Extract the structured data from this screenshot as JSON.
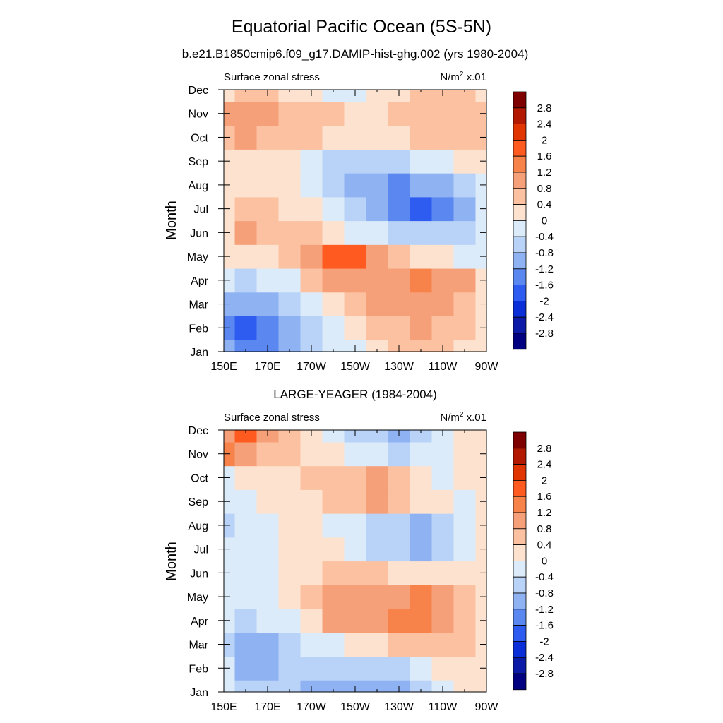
{
  "title": "Equatorial Pacific Ocean (5S-5N)",
  "colorbar": {
    "levels": [
      "2.8",
      "2.4",
      "2",
      "1.6",
      "1.2",
      "0.8",
      "0.4",
      "0",
      "-0.4",
      "-0.8",
      "-1.2",
      "-1.6",
      "-2",
      "-2.4",
      "-2.8"
    ],
    "colors": [
      "#7f0000",
      "#b31900",
      "#e03500",
      "#ff5a1f",
      "#f7824a",
      "#f6a07a",
      "#fbc1a0",
      "#fde3cf",
      "#dcebfa",
      "#b9d2f7",
      "#8fb2f3",
      "#5b88f0",
      "#2e5cf0",
      "#0a2fd9",
      "#0b1ba8",
      "#000080"
    ]
  },
  "chart_data": [
    {
      "type": "heatmap",
      "title": "b.e21.B1850cmip6.f09_g17.DAMIP-hist-ghg.002 (yrs 1980-2004)",
      "left_label": "Surface zonal stress",
      "units_label": "N/m",
      "units_sup": "2",
      "units_scale": " x.01",
      "ylabel": "Month",
      "x_tick_labels": [
        "150E",
        "170E",
        "170W",
        "150W",
        "130W",
        "110W",
        "90W"
      ],
      "y_tick_labels": [
        "Jan",
        "Feb",
        "Mar",
        "Apr",
        "May",
        "Jun",
        "Jul",
        "Aug",
        "Sep",
        "Oct",
        "Nov",
        "Dec"
      ],
      "xlim": [
        150,
        270
      ],
      "x": [
        150,
        160,
        170,
        180,
        190,
        200,
        210,
        220,
        230,
        240,
        250,
        260,
        270
      ],
      "y": [
        "Jan",
        "Feb",
        "Mar",
        "Apr",
        "May",
        "Jun",
        "Jul",
        "Aug",
        "Sep",
        "Oct",
        "Nov",
        "Dec"
      ],
      "values": [
        [
          -1.0,
          -1.6,
          -1.4,
          -1.2,
          -0.8,
          -0.4,
          -0.2,
          0.2,
          0.4,
          0.4,
          0.4,
          0.2,
          0.2
        ],
        [
          -1.4,
          -1.8,
          -1.6,
          -1.0,
          -0.6,
          -0.2,
          0.2,
          0.4,
          0.6,
          0.8,
          0.6,
          0.4,
          0.2
        ],
        [
          -1.0,
          -1.2,
          -1.0,
          -0.6,
          -0.2,
          0.2,
          0.6,
          0.8,
          1.0,
          1.0,
          0.8,
          0.6,
          0.2
        ],
        [
          -0.4,
          -0.6,
          -0.4,
          -0.2,
          0.4,
          0.8,
          1.2,
          1.2,
          1.2,
          1.4,
          1.0,
          0.8,
          0.2
        ],
        [
          0.0,
          0.2,
          0.2,
          0.6,
          1.0,
          1.6,
          1.6,
          1.0,
          0.6,
          0.2,
          0.0,
          -0.2,
          -0.2
        ],
        [
          0.2,
          0.8,
          0.6,
          0.6,
          0.4,
          0.2,
          -0.2,
          -0.4,
          -0.6,
          -0.8,
          -0.8,
          -0.8,
          -0.4
        ],
        [
          0.2,
          0.4,
          0.6,
          0.2,
          0.0,
          -0.4,
          -0.8,
          -1.2,
          -1.6,
          -1.8,
          -1.6,
          -1.0,
          -0.4
        ],
        [
          0.0,
          0.2,
          0.2,
          0.0,
          -0.4,
          -0.8,
          -1.0,
          -1.2,
          -1.4,
          -1.2,
          -1.0,
          -0.6,
          -0.2
        ],
        [
          0.0,
          0.2,
          0.2,
          0.0,
          -0.2,
          -0.6,
          -0.8,
          -0.8,
          -0.6,
          -0.4,
          -0.2,
          0.0,
          0.0
        ],
        [
          0.6,
          0.8,
          0.6,
          0.4,
          0.4,
          0.2,
          0.2,
          0.2,
          0.0,
          0.4,
          0.4,
          0.4,
          0.4
        ],
        [
          0.8,
          1.0,
          0.8,
          0.6,
          0.6,
          0.4,
          0.2,
          0.2,
          0.4,
          0.6,
          0.6,
          0.6,
          0.4
        ],
        [
          0.2,
          0.4,
          0.4,
          0.2,
          0.0,
          -0.2,
          -0.2,
          0.0,
          0.2,
          0.4,
          0.4,
          0.4,
          0.2
        ]
      ]
    },
    {
      "type": "heatmap",
      "title": "LARGE-YEAGER (1984-2004)",
      "left_label": "Surface zonal stress",
      "units_label": "N/m",
      "units_sup": "2",
      "units_scale": " x.01",
      "ylabel": "Month",
      "x_tick_labels": [
        "150E",
        "170E",
        "170W",
        "150W",
        "130W",
        "110W",
        "90W"
      ],
      "y_tick_labels": [
        "Jan",
        "Feb",
        "Mar",
        "Apr",
        "May",
        "Jun",
        "Jul",
        "Aug",
        "Sep",
        "Oct",
        "Nov",
        "Dec"
      ],
      "xlim": [
        150,
        270
      ],
      "x": [
        150,
        160,
        170,
        180,
        190,
        200,
        210,
        220,
        230,
        240,
        250,
        260,
        270
      ],
      "y": [
        "Jan",
        "Feb",
        "Mar",
        "Apr",
        "May",
        "Jun",
        "Jul",
        "Aug",
        "Sep",
        "Oct",
        "Nov",
        "Dec"
      ],
      "values": [
        [
          -0.4,
          -0.8,
          -0.8,
          -0.6,
          -1.0,
          -1.2,
          -1.0,
          -1.2,
          -1.0,
          -0.6,
          -0.2,
          0.2,
          0.2
        ],
        [
          -0.4,
          -1.0,
          -1.2,
          -0.8,
          -0.8,
          -0.8,
          -0.6,
          -0.8,
          -0.6,
          -0.2,
          0.0,
          0.2,
          0.2
        ],
        [
          -0.6,
          -1.0,
          -1.0,
          -0.6,
          -0.4,
          -0.2,
          0.0,
          0.2,
          0.4,
          0.4,
          0.4,
          0.6,
          0.2
        ],
        [
          -0.4,
          -0.6,
          -0.4,
          -0.2,
          0.2,
          0.8,
          1.0,
          1.2,
          1.4,
          1.4,
          1.0,
          0.6,
          0.2
        ],
        [
          -0.4,
          -0.4,
          -0.2,
          0.0,
          0.4,
          0.8,
          1.0,
          1.0,
          1.2,
          1.4,
          1.0,
          0.6,
          0.2
        ],
        [
          -0.2,
          -0.2,
          -0.2,
          0.0,
          0.2,
          0.4,
          0.4,
          0.4,
          0.2,
          0.2,
          0.2,
          0.2,
          0.0
        ],
        [
          -0.2,
          -0.2,
          -0.2,
          0.0,
          0.2,
          0.0,
          -0.4,
          -0.8,
          -0.8,
          -1.2,
          -0.8,
          -0.4,
          0.0
        ],
        [
          -0.6,
          -0.4,
          -0.2,
          0.0,
          0.0,
          -0.2,
          -0.4,
          -0.6,
          -0.8,
          -1.0,
          -0.6,
          -0.2,
          0.0
        ],
        [
          -0.4,
          -0.2,
          0.0,
          0.2,
          0.2,
          0.4,
          0.6,
          0.8,
          0.4,
          0.2,
          0.0,
          -0.2,
          0.0
        ],
        [
          -0.2,
          0.0,
          0.2,
          0.2,
          0.4,
          0.6,
          0.6,
          0.8,
          0.4,
          0.0,
          -0.2,
          0.0,
          0.2
        ],
        [
          1.4,
          1.2,
          0.6,
          0.4,
          0.2,
          0.0,
          -0.2,
          -0.4,
          -0.6,
          -0.4,
          -0.2,
          0.0,
          0.0
        ],
        [
          1.0,
          1.8,
          1.0,
          0.4,
          0.0,
          -0.4,
          -0.6,
          -0.8,
          -1.2,
          -0.8,
          -0.4,
          0.0,
          0.0
        ]
      ]
    }
  ]
}
